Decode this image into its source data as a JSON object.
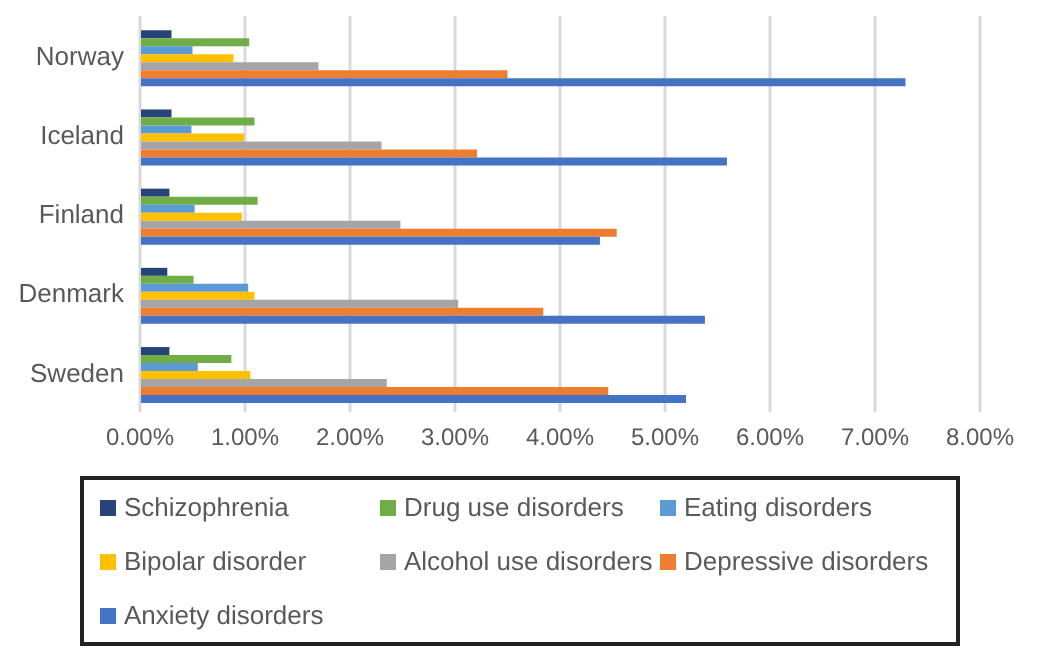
{
  "chart_data": {
    "type": "bar",
    "orientation": "horizontal",
    "categories": [
      "Norway",
      "Iceland",
      "Finland",
      "Denmark",
      "Sweden"
    ],
    "series": [
      {
        "name": "Schizophrenia",
        "color": "#264478",
        "values": [
          0.3,
          0.3,
          0.28,
          0.26,
          0.28
        ]
      },
      {
        "name": "Drug use disorders",
        "color": "#70ad47",
        "values": [
          1.04,
          1.09,
          1.12,
          0.51,
          0.87
        ]
      },
      {
        "name": "Eating disorders",
        "color": "#5b9bd5",
        "values": [
          0.5,
          0.49,
          0.52,
          1.03,
          0.55
        ]
      },
      {
        "name": "Bipolar disorder",
        "color": "#ffc000",
        "values": [
          0.89,
          0.99,
          0.97,
          1.09,
          1.05
        ]
      },
      {
        "name": "Alcohol use disorders",
        "color": "#a5a5a5",
        "values": [
          1.7,
          2.3,
          2.48,
          3.03,
          2.35
        ]
      },
      {
        "name": "Depressive disorders",
        "color": "#ed7d31",
        "values": [
          3.5,
          3.21,
          4.54,
          3.84,
          4.46
        ]
      },
      {
        "name": "Anxiety disorders",
        "color": "#4472c4",
        "values": [
          7.29,
          5.59,
          4.38,
          5.38,
          5.2
        ]
      }
    ],
    "xlim": [
      0,
      8
    ],
    "xticks": [
      {
        "value": 0,
        "label": "0.00%"
      },
      {
        "value": 1,
        "label": "1.00%"
      },
      {
        "value": 2,
        "label": "2.00%"
      },
      {
        "value": 3,
        "label": "3.00%"
      },
      {
        "value": 4,
        "label": "4.00%"
      },
      {
        "value": 5,
        "label": "5.00%"
      },
      {
        "value": 6,
        "label": "6.00%"
      },
      {
        "value": 7,
        "label": "7.00%"
      },
      {
        "value": 8,
        "label": "8.00%"
      }
    ],
    "grid": "x",
    "legend": "bottom"
  }
}
